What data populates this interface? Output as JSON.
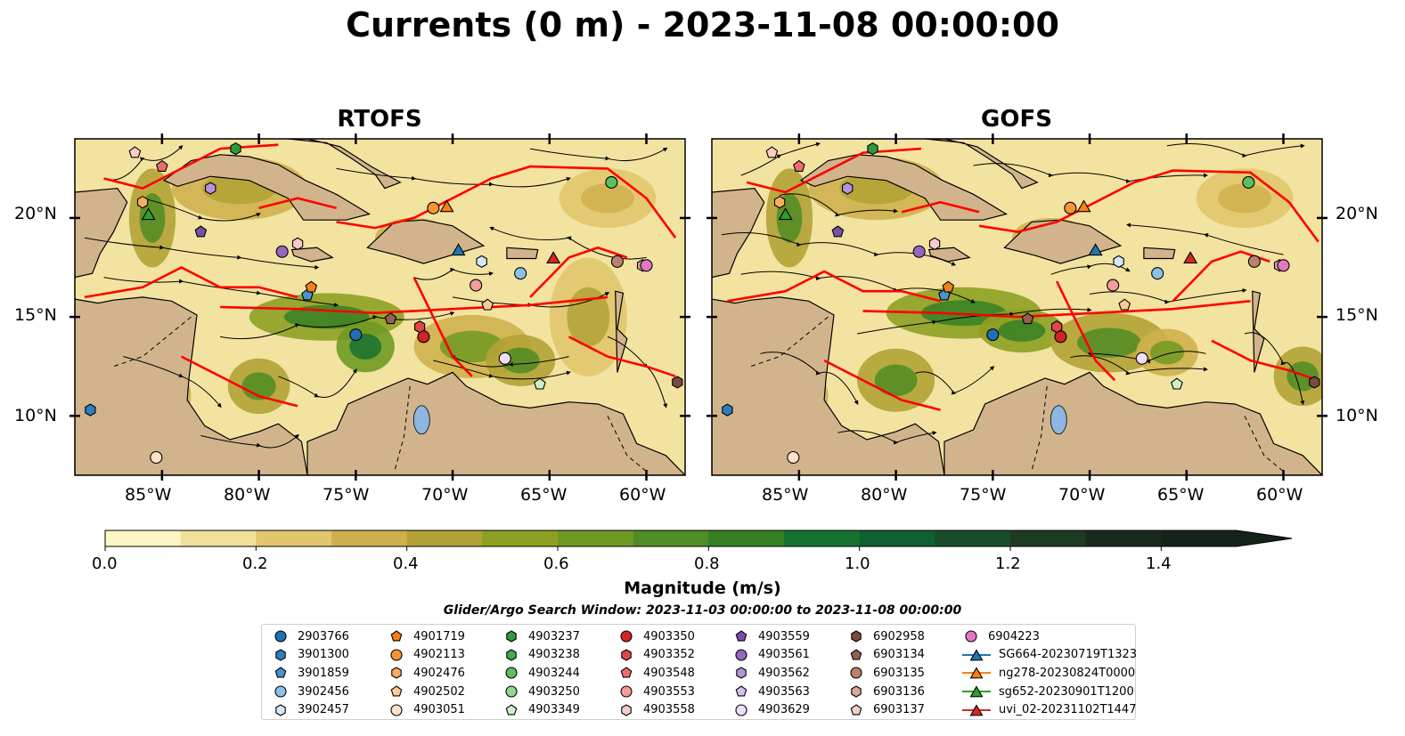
{
  "title": "Currents (0 m) - 2023-11-08 00:00:00",
  "panels": [
    {
      "title": "RTOFS",
      "lat_labels": [
        "20°N",
        "15°N",
        "10°N"
      ],
      "lon_labels": [
        "85°W",
        "80°W",
        "75°W",
        "70°W",
        "65°W",
        "60°W"
      ]
    },
    {
      "title": "GOFS",
      "lat_labels": [
        "20°N",
        "15°N",
        "10°N"
      ],
      "lon_labels": [
        "85°W",
        "80°W",
        "75°W",
        "70°W",
        "65°W",
        "60°W"
      ]
    }
  ],
  "map_extent": {
    "lon_min": -89.5,
    "lon_max": -58.0,
    "lat_min": 7.0,
    "lat_max": 24.0
  },
  "colorbar": {
    "label": "Magnitude (m/s)",
    "ticks": [
      "0.0",
      "0.2",
      "0.4",
      "0.6",
      "0.8",
      "1.0",
      "1.2",
      "1.4"
    ],
    "min": 0.0,
    "max": 1.5,
    "extend": "max",
    "colors": [
      "#fdf6c4",
      "#efe099",
      "#e1c76d",
      "#cfb04c",
      "#b2a236",
      "#8ea022",
      "#6f9a22",
      "#4f8c25",
      "#358024",
      "#17722f",
      "#0f6032",
      "#194c2c",
      "#1d3a22",
      "#1a2a1a",
      "#162318"
    ]
  },
  "search_window": "Glider/Argo Search Window: 2023-11-03 00:00:00 to 2023-11-08 00:00:00",
  "colors": {
    "land": "#d2b48c",
    "transect": "#ff0000",
    "streamline": "#000000",
    "lake": "#8db6e0"
  },
  "legend": [
    {
      "label": "2903766",
      "marker": "circle",
      "color": "#1f6fb4"
    },
    {
      "label": "3901300",
      "marker": "hexagon",
      "color": "#2b7fbf"
    },
    {
      "label": "3901859",
      "marker": "pentagon",
      "color": "#4a93d0"
    },
    {
      "label": "3902456",
      "marker": "circle",
      "color": "#8ec0e6"
    },
    {
      "label": "3902457",
      "marker": "hexagon",
      "color": "#d5e7f7"
    },
    {
      "label": "4901719",
      "marker": "pentagon",
      "color": "#f0801a"
    },
    {
      "label": "4902113",
      "marker": "circle",
      "color": "#f59536"
    },
    {
      "label": "4902476",
      "marker": "hexagon",
      "color": "#f7ae64"
    },
    {
      "label": "4902502",
      "marker": "pentagon",
      "color": "#fbcb97"
    },
    {
      "label": "4903051",
      "marker": "circle",
      "color": "#fde3c8"
    },
    {
      "label": "4903237",
      "marker": "hexagon",
      "color": "#2e9a3c"
    },
    {
      "label": "4903238",
      "marker": "hexagon",
      "color": "#41ab4d"
    },
    {
      "label": "4903244",
      "marker": "circle",
      "color": "#5cbe5e"
    },
    {
      "label": "4903250",
      "marker": "circle",
      "color": "#93d792"
    },
    {
      "label": "4903349",
      "marker": "pentagon",
      "color": "#cdf0c9"
    },
    {
      "label": "4903350",
      "marker": "circle",
      "color": "#d42323"
    },
    {
      "label": "4903352",
      "marker": "hexagon",
      "color": "#e04848"
    },
    {
      "label": "4903548",
      "marker": "pentagon",
      "color": "#ec6c6c"
    },
    {
      "label": "4903553",
      "marker": "circle",
      "color": "#f49b9b"
    },
    {
      "label": "4903558",
      "marker": "hexagon",
      "color": "#f9cccc"
    },
    {
      "label": "4903559",
      "marker": "pentagon",
      "color": "#7b4fa8"
    },
    {
      "label": "4903561",
      "marker": "circle",
      "color": "#9467bd"
    },
    {
      "label": "4903562",
      "marker": "hexagon",
      "color": "#b394d6"
    },
    {
      "label": "4903563",
      "marker": "pentagon",
      "color": "#d4bff0"
    },
    {
      "label": "4903629",
      "marker": "circle",
      "color": "#ecdffb"
    },
    {
      "label": "6902958",
      "marker": "hexagon",
      "color": "#7a4a3b"
    },
    {
      "label": "6903134",
      "marker": "pentagon",
      "color": "#966050"
    },
    {
      "label": "6903135",
      "marker": "circle",
      "color": "#bb8070"
    },
    {
      "label": "6903136",
      "marker": "hexagon",
      "color": "#dba697"
    },
    {
      "label": "6903137",
      "marker": "pentagon",
      "color": "#f7d0c4"
    },
    {
      "label": "6904223",
      "marker": "circle",
      "color": "#e377c2"
    },
    {
      "label": "SG664-20230719T1323",
      "marker": "triangle-line",
      "color": "#1f77b4"
    },
    {
      "label": "ng278-20230824T0000",
      "marker": "triangle-line",
      "color": "#ff7f0e"
    },
    {
      "label": "sg652-20230901T1200",
      "marker": "triangle-line",
      "color": "#2ca02c"
    },
    {
      "label": "uvi_02-20231102T1447",
      "marker": "triangle-line",
      "color": "#d62728"
    }
  ],
  "floats": [
    {
      "id": "2903766",
      "lon": -75.0,
      "lat": 14.1
    },
    {
      "id": "3901300",
      "lon": -88.7,
      "lat": 10.3
    },
    {
      "id": "3901859",
      "lon": -77.5,
      "lat": 16.1
    },
    {
      "id": "3902456",
      "lon": -66.5,
      "lat": 17.2
    },
    {
      "id": "3902457",
      "lon": -68.5,
      "lat": 17.8
    },
    {
      "id": "4901719",
      "lon": -77.3,
      "lat": 16.5
    },
    {
      "id": "4902113",
      "lon": -71.0,
      "lat": 20.5
    },
    {
      "id": "4902476",
      "lon": -86.0,
      "lat": 20.8
    },
    {
      "id": "4902502",
      "lon": -68.2,
      "lat": 15.6
    },
    {
      "id": "4903051",
      "lon": -85.3,
      "lat": 7.9
    },
    {
      "id": "4903237",
      "lon": -81.2,
      "lat": 23.5
    },
    {
      "id": "4903244",
      "lon": -61.8,
      "lat": 21.8
    },
    {
      "id": "4903349",
      "lon": -65.5,
      "lat": 11.6
    },
    {
      "id": "4903350",
      "lon": -71.5,
      "lat": 14.0
    },
    {
      "id": "4903352",
      "lon": -71.7,
      "lat": 14.5
    },
    {
      "id": "4903548",
      "lon": -85.0,
      "lat": 22.6
    },
    {
      "id": "4903553",
      "lon": -68.8,
      "lat": 16.6
    },
    {
      "id": "4903558",
      "lon": -78.0,
      "lat": 18.7
    },
    {
      "id": "4903559",
      "lon": -83.0,
      "lat": 19.3
    },
    {
      "id": "4903561",
      "lon": -78.8,
      "lat": 18.3
    },
    {
      "id": "4903562",
      "lon": -82.5,
      "lat": 21.5
    },
    {
      "id": "4903629",
      "lon": -67.3,
      "lat": 12.9
    },
    {
      "id": "6902958",
      "lon": -58.4,
      "lat": 11.7
    },
    {
      "id": "6903134",
      "lon": -73.2,
      "lat": 14.9
    },
    {
      "id": "6903135",
      "lon": -61.5,
      "lat": 17.8
    },
    {
      "id": "6903136",
      "lon": -60.2,
      "lat": 17.6
    },
    {
      "id": "6903137",
      "lon": -86.4,
      "lat": 23.3
    },
    {
      "id": "6904223",
      "lon": -60.0,
      "lat": 17.6
    },
    {
      "id": "SG664-20230719T1323",
      "lon": -69.7,
      "lat": 18.4
    },
    {
      "id": "ng278-20230824T0000",
      "lon": -70.3,
      "lat": 20.6
    },
    {
      "id": "sg652-20230901T1200",
      "lon": -85.7,
      "lat": 20.2
    },
    {
      "id": "uvi_02-20231102T1447",
      "lon": -64.8,
      "lat": 18.0
    }
  ]
}
